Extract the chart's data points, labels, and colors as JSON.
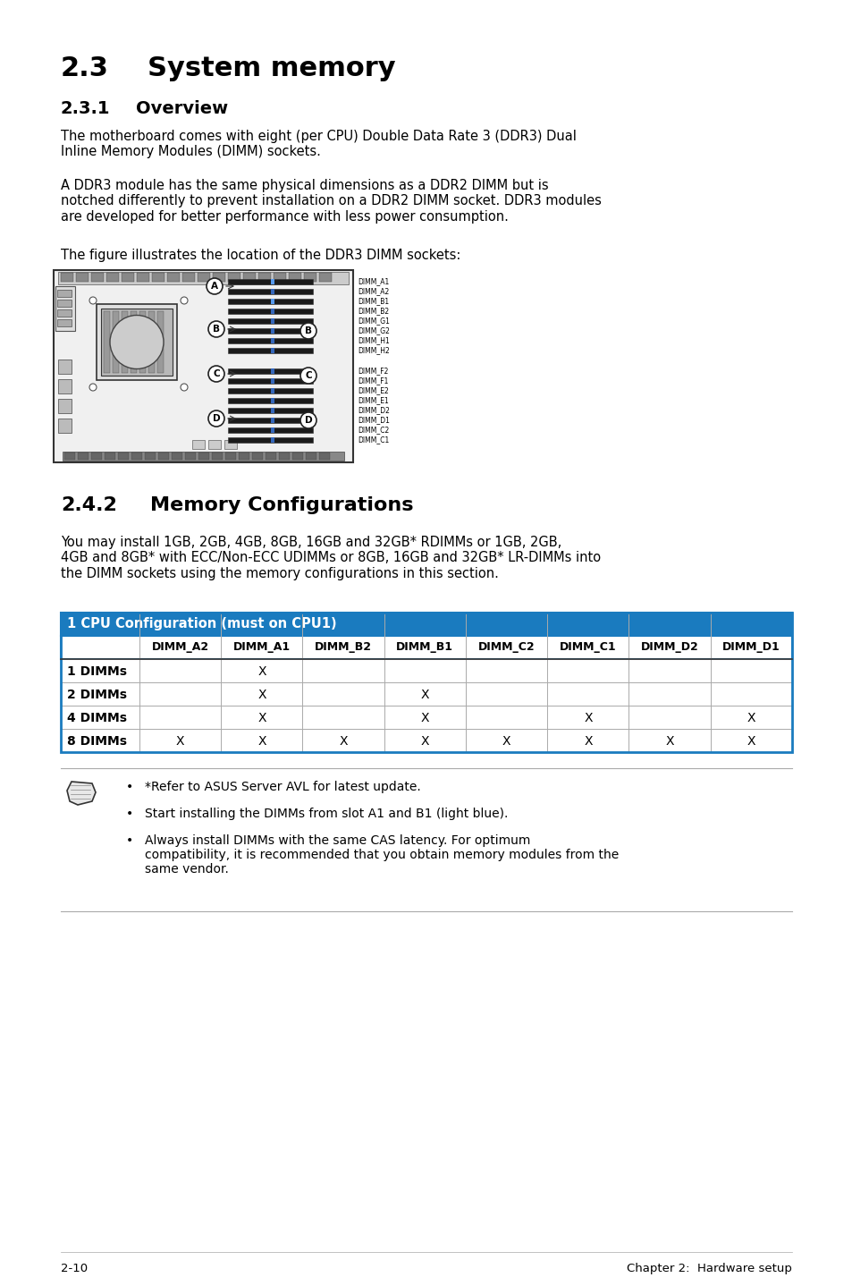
{
  "page_bg": "#ffffff",
  "section_title_num": "2.3",
  "section_title_text": "System memory",
  "subsection_title_num": "2.3.1",
  "subsection_title_text": "Overview",
  "body_text_1": "The motherboard comes with eight (per CPU) Double Data Rate 3 (DDR3) Dual\nInline Memory Modules (DIMM) sockets.",
  "body_text_2": "A DDR3 module has the same physical dimensions as a DDR2 DIMM but is\nnotched differently to prevent installation on a DDR2 DIMM socket. DDR3 modules\nare developed for better performance with less power consumption.",
  "body_text_3": "The figure illustrates the location of the DDR3 DIMM sockets:",
  "section2_title_num": "2.4.2",
  "section2_title_text": "Memory Configurations",
  "body_text_4": "You may install 1GB, 2GB, 4GB, 8GB, 16GB and 32GB* RDIMMs or 1GB, 2GB,\n4GB and 8GB* with ECC/Non-ECC UDIMMs or 8GB, 16GB and 32GB* LR-DIMMs into\nthe DIMM sockets using the memory configurations in this section.",
  "table_header_bg": "#1a7bbf",
  "table_header_text": "#ffffff",
  "table_border": "#1a7bbf",
  "table_inner_border": "#aaaaaa",
  "table_title": "1 CPU Configuration (must on CPU1)",
  "table_cols": [
    "",
    "DIMM_A2",
    "DIMM_A1",
    "DIMM_B2",
    "DIMM_B1",
    "DIMM_C2",
    "DIMM_C1",
    "DIMM_D2",
    "DIMM_D1"
  ],
  "table_rows": [
    [
      "1 DIMMs",
      "",
      "X",
      "",
      "",
      "",
      "",
      "",
      ""
    ],
    [
      "2 DIMMs",
      "",
      "X",
      "",
      "X",
      "",
      "",
      "",
      ""
    ],
    [
      "4 DIMMs",
      "",
      "X",
      "",
      "X",
      "",
      "X",
      "",
      "X"
    ],
    [
      "8 DIMMs",
      "X",
      "X",
      "X",
      "X",
      "X",
      "X",
      "X",
      "X"
    ]
  ],
  "note_bullet1": "*Refer to ASUS Server AVL for latest update.",
  "note_bullet2": "Start installing the DIMMs from slot A1 and B1 (light blue).",
  "note_bullet3": "Always install DIMMs with the same CAS latency. For optimum\ncompatibility, it is recommended that you obtain memory modules from the\nsame vendor.",
  "footer_left": "2-10",
  "footer_right": "Chapter 2:  Hardware setup",
  "dimm_labels_right_top": [
    "DIMM_A1",
    "DIMM_A2",
    "DIMM_B1",
    "DIMM_B2",
    "DIMM_G1",
    "DIMM_G2",
    "DIMM_H1",
    "DIMM_H2"
  ],
  "dimm_labels_right_bot": [
    "DIMM_F2",
    "DIMM_F1",
    "DIMM_E2",
    "DIMM_E1",
    "DIMM_D2",
    "DIMM_D1",
    "DIMM_C2",
    "DIMM_C1"
  ]
}
